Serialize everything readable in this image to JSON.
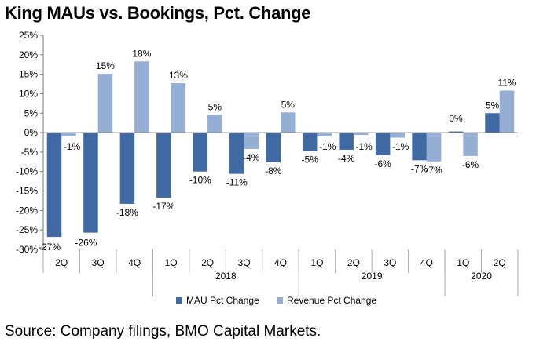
{
  "title": "King MAUs vs. Bookings, Pct. Change",
  "source": "Source: Company filings, BMO Capital Markets.",
  "chart_data": {
    "type": "bar",
    "ylim": [
      -30,
      25
    ],
    "yticks": [
      25,
      20,
      15,
      10,
      5,
      0,
      -5,
      -10,
      -15,
      -20,
      -25,
      -30
    ],
    "ytick_labels": [
      "25%",
      "20%",
      "15%",
      "10%",
      "5%",
      "0%",
      "-5%",
      "-10%",
      "-15%",
      "-20%",
      "-25%",
      "-30%"
    ],
    "categories": [
      "2Q",
      "3Q",
      "4Q",
      "1Q",
      "2Q",
      "3Q",
      "4Q",
      "1Q",
      "2Q",
      "3Q",
      "4Q",
      "1Q",
      "2Q"
    ],
    "groups": [
      {
        "label": "",
        "start": 0,
        "end": 2
      },
      {
        "label": "2018",
        "start": 3,
        "end": 6
      },
      {
        "label": "2019",
        "start": 7,
        "end": 10
      },
      {
        "label": "2020",
        "start": 11,
        "end": 12
      }
    ],
    "series": [
      {
        "name": "MAU Pct Change",
        "color": "#3f6aa3",
        "values": [
          -26.8,
          -25.7,
          -18.3,
          -16.7,
          -10.0,
          -10.6,
          -7.6,
          -4.7,
          -4.4,
          -5.8,
          -7.1,
          0.3,
          5.0
        ],
        "labels": [
          "-27%",
          "-26%",
          "-18%",
          "-17%",
          "-10%",
          "-11%",
          "-8%",
          "-5%",
          "-4%",
          "-6%",
          "-7%",
          "0%",
          "5%"
        ]
      },
      {
        "name": "Revenue Pct Change",
        "color": "#95aed4",
        "values": [
          -0.9,
          15.1,
          18.3,
          12.7,
          4.6,
          -4.2,
          5.2,
          -0.9,
          -0.6,
          -1.3,
          -7.4,
          -6.0,
          10.8
        ],
        "labels": [
          "-1%",
          "15%",
          "18%",
          "13%",
          "5%",
          "-4%",
          "5%",
          "-1%",
          "-1%",
          "-1%",
          "-7%",
          "-6%",
          "11%"
        ]
      }
    ],
    "grid": false,
    "legend": "bottom"
  }
}
